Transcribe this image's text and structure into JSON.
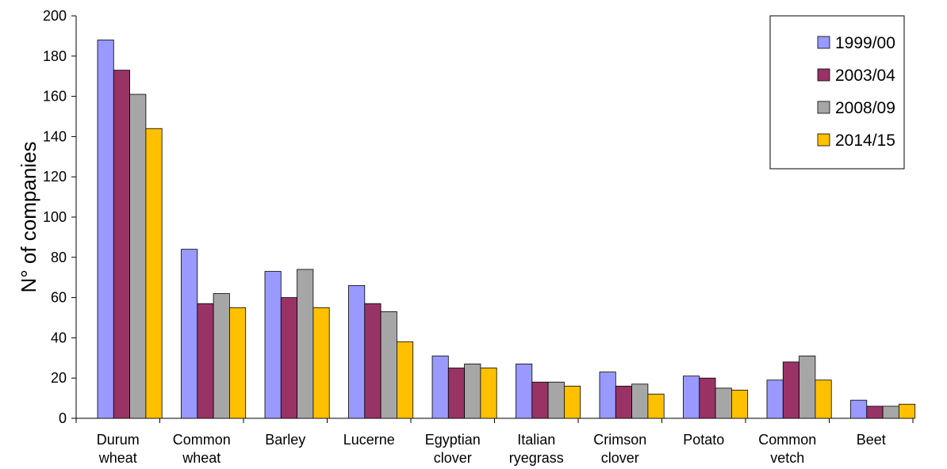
{
  "chart_data": {
    "type": "bar",
    "ylabel": "N° of companies",
    "xlabel": "",
    "ylim": [
      0,
      200
    ],
    "yticks": [
      0,
      20,
      40,
      60,
      80,
      100,
      120,
      140,
      160,
      180,
      200
    ],
    "grid": false,
    "legend_position": "top-right",
    "categories": [
      [
        "Durum",
        "wheat"
      ],
      [
        "Common",
        "wheat"
      ],
      [
        "Barley"
      ],
      [
        "Lucerne"
      ],
      [
        "Egyptian",
        "clover"
      ],
      [
        "Italian",
        "ryegrass"
      ],
      [
        "Crimson",
        "clover"
      ],
      [
        "Potato"
      ],
      [
        "Common",
        "vetch"
      ],
      [
        "Beet"
      ]
    ],
    "series": [
      {
        "name": "1999/00",
        "color": "#9999ff",
        "values": [
          188,
          84,
          73,
          66,
          31,
          27,
          23,
          21,
          19,
          9
        ]
      },
      {
        "name": "2003/04",
        "color": "#993366",
        "values": [
          173,
          57,
          60,
          57,
          25,
          18,
          16,
          20,
          28,
          6
        ]
      },
      {
        "name": "2008/09",
        "color": "#a6a6a6",
        "values": [
          161,
          62,
          74,
          53,
          27,
          18,
          17,
          15,
          31,
          6
        ]
      },
      {
        "name": "2014/15",
        "color": "#ffc000",
        "values": [
          144,
          55,
          55,
          38,
          25,
          16,
          12,
          14,
          19,
          7
        ]
      }
    ]
  }
}
